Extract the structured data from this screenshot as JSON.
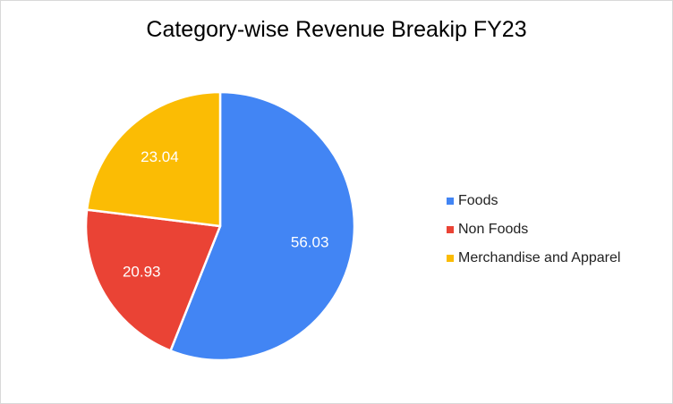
{
  "chart_data": {
    "type": "pie",
    "title": "Category-wise Revenue Breakip FY23",
    "legend_position": "right",
    "series": [
      {
        "labels": [
          "Foods",
          "Non Foods",
          "Merchandise and Apparel"
        ],
        "values": [
          56.03,
          20.93,
          23.04
        ],
        "data_labels": [
          "56.03",
          "20.93",
          "23.04"
        ],
        "colors": [
          "#4285f4",
          "#ea4335",
          "#fbbc04"
        ]
      }
    ]
  }
}
